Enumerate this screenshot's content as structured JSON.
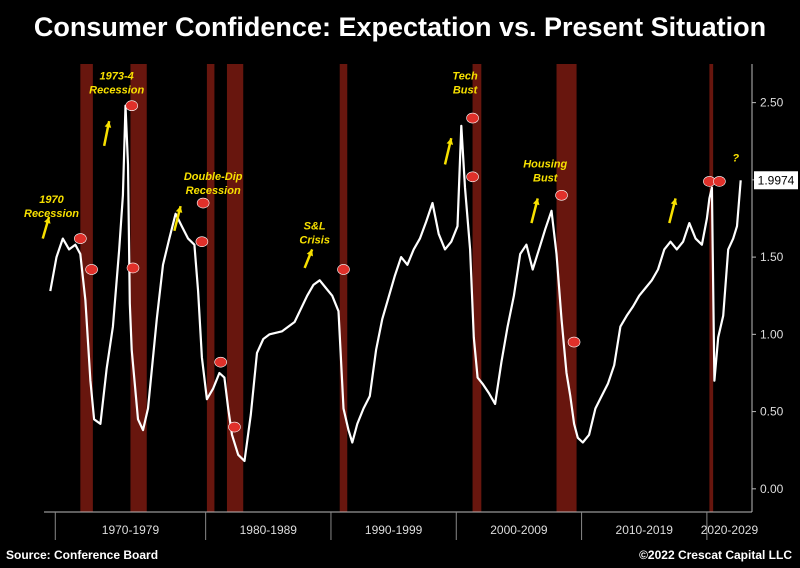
{
  "title": "Consumer Confidence: Expectation vs. Present Situation",
  "source": "Source: Conference Board",
  "copyright": "©2022 Crescat Capital LLC",
  "colors": {
    "line": "#ffffff",
    "recession": "#7a1a10",
    "annotation": "#f7e000",
    "marker": "#e0302a"
  },
  "chart_data": {
    "type": "line",
    "title": "Consumer Confidence: Expectation vs. Present Situation",
    "xlabel": "",
    "ylabel": "",
    "xlim": [
      1967.0,
      2023.5
    ],
    "ylim": [
      -0.15,
      2.75
    ],
    "yticks": [
      0.0,
      0.5,
      1.0,
      1.5,
      2.0,
      2.5
    ],
    "ytick_labels": [
      "0.00",
      "0.50",
      "1.00",
      "1.50",
      "",
      "2.50"
    ],
    "last_value_label": "1.9974",
    "last_value": 1.9974,
    "x_categories": [
      "1970-1979",
      "1980-1989",
      "1990-1999",
      "2000-2009",
      "2010-2019",
      "2020-2029"
    ],
    "x_category_bounds": [
      [
        1967.9,
        1979.9
      ],
      [
        1979.9,
        1989.9
      ],
      [
        1989.9,
        1999.9
      ],
      [
        1999.9,
        2009.9
      ],
      [
        2009.9,
        2019.9
      ],
      [
        2019.9,
        2023.5
      ]
    ],
    "recessions": [
      [
        1969.9,
        1970.9
      ],
      [
        1973.9,
        1975.2
      ],
      [
        1980.0,
        1980.6
      ],
      [
        1981.6,
        1982.9
      ],
      [
        1990.6,
        1991.2
      ],
      [
        2001.2,
        2001.9
      ],
      [
        2007.9,
        2009.5
      ],
      [
        2020.1,
        2020.4
      ]
    ],
    "series": [
      {
        "x": [
          1967.5,
          1968.0,
          1968.5,
          1969.0,
          1969.5,
          1969.9,
          1970.3,
          1970.7,
          1971.0,
          1971.5,
          1972.0,
          1972.5,
          1973.0,
          1973.3,
          1973.5,
          1973.7,
          1973.85,
          1974.0,
          1974.5,
          1974.9,
          1975.3,
          1976.0,
          1976.5,
          1977.0,
          1977.5,
          1978.0,
          1978.5,
          1979.0,
          1979.3,
          1979.6,
          1980.0,
          1980.5,
          1981.0,
          1981.4,
          1981.7,
          1982.0,
          1982.5,
          1983.0,
          1983.5,
          1984.0,
          1984.5,
          1985.0,
          1986.0,
          1987.0,
          1988.0,
          1988.5,
          1989.0,
          1989.5,
          1990.0,
          1990.5,
          1990.9,
          1991.3,
          1991.6,
          1992.0,
          1992.5,
          1993.0,
          1993.5,
          1994.0,
          1994.5,
          1995.0,
          1995.5,
          1996.0,
          1996.5,
          1997.0,
          1997.5,
          1998.0,
          1998.5,
          1999.0,
          1999.5,
          2000.0,
          2000.3,
          2000.6,
          2001.0,
          2001.3,
          2001.6,
          2002.0,
          2002.5,
          2003.0,
          2003.5,
          2004.0,
          2004.5,
          2005.0,
          2005.5,
          2006.0,
          2006.5,
          2007.0,
          2007.5,
          2007.9,
          2008.3,
          2008.7,
          2009.0,
          2009.3,
          2009.6,
          2010.0,
          2010.5,
          2011.0,
          2011.5,
          2012.0,
          2012.5,
          2013.0,
          2013.5,
          2014.0,
          2014.5,
          2015.0,
          2015.5,
          2016.0,
          2016.5,
          2017.0,
          2017.5,
          2018.0,
          2018.5,
          2019.0,
          2019.5,
          2019.9,
          2020.1,
          2020.3,
          2020.5,
          2020.8,
          2021.2,
          2021.6,
          2022.0,
          2022.3,
          2022.6
        ],
        "y": [
          1.28,
          1.5,
          1.62,
          1.55,
          1.58,
          1.52,
          1.22,
          0.7,
          0.45,
          0.42,
          0.78,
          1.05,
          1.55,
          1.9,
          2.48,
          2.1,
          1.2,
          0.9,
          0.45,
          0.38,
          0.52,
          1.1,
          1.45,
          1.62,
          1.78,
          1.7,
          1.62,
          1.58,
          1.28,
          0.85,
          0.58,
          0.65,
          0.75,
          0.72,
          0.52,
          0.35,
          0.22,
          0.18,
          0.48,
          0.88,
          0.97,
          1.0,
          1.02,
          1.08,
          1.25,
          1.32,
          1.35,
          1.3,
          1.25,
          1.15,
          0.52,
          0.38,
          0.3,
          0.42,
          0.52,
          0.6,
          0.9,
          1.1,
          1.24,
          1.38,
          1.5,
          1.45,
          1.55,
          1.62,
          1.73,
          1.85,
          1.65,
          1.55,
          1.6,
          1.7,
          2.35,
          1.95,
          1.55,
          0.98,
          0.72,
          0.68,
          0.62,
          0.55,
          0.82,
          1.05,
          1.25,
          1.52,
          1.58,
          1.42,
          1.55,
          1.68,
          1.8,
          1.52,
          1.1,
          0.75,
          0.6,
          0.42,
          0.33,
          0.3,
          0.35,
          0.52,
          0.6,
          0.68,
          0.8,
          1.05,
          1.12,
          1.18,
          1.25,
          1.3,
          1.35,
          1.42,
          1.55,
          1.6,
          1.55,
          1.6,
          1.72,
          1.62,
          1.58,
          1.75,
          1.88,
          1.95,
          0.7,
          0.98,
          1.12,
          1.55,
          1.62,
          1.7,
          1.9974
        ]
      }
    ],
    "markers": [
      {
        "x": 1969.9,
        "y": 1.62
      },
      {
        "x": 1970.8,
        "y": 1.42
      },
      {
        "x": 1974.0,
        "y": 2.48
      },
      {
        "x": 1974.1,
        "y": 1.43
      },
      {
        "x": 1979.7,
        "y": 1.85
      },
      {
        "x": 1979.6,
        "y": 1.6
      },
      {
        "x": 1981.1,
        "y": 0.82
      },
      {
        "x": 1982.2,
        "y": 0.4
      },
      {
        "x": 1990.9,
        "y": 1.42
      },
      {
        "x": 2001.2,
        "y": 2.4
      },
      {
        "x": 2001.2,
        "y": 2.02
      },
      {
        "x": 2008.3,
        "y": 1.9
      },
      {
        "x": 2009.3,
        "y": 0.95
      },
      {
        "x": 2020.1,
        "y": 1.99
      }
    ],
    "annotations": [
      {
        "lines": [
          "1970",
          "Recession"
        ],
        "x": 1967.6,
        "y": 1.85,
        "arrow": [
          1966.9,
          1.62,
          1967.4,
          1.76
        ]
      },
      {
        "lines": [
          "1973-4",
          "Recession"
        ],
        "x": 1972.8,
        "y": 2.65,
        "arrow": [
          1971.8,
          2.22,
          1972.2,
          2.38
        ]
      },
      {
        "lines": [
          "Double-Dip",
          "Recession"
        ],
        "x": 1980.5,
        "y": 2.0,
        "arrow": [
          1977.4,
          1.67,
          1977.9,
          1.83
        ]
      },
      {
        "lines": [
          "S&L",
          "Crisis"
        ],
        "x": 1988.6,
        "y": 1.68,
        "arrow": [
          1987.8,
          1.43,
          1988.4,
          1.55
        ]
      },
      {
        "lines": [
          "Tech",
          "Bust"
        ],
        "x": 2000.6,
        "y": 2.65,
        "arrow": [
          1999.0,
          2.1,
          1999.5,
          2.27
        ]
      },
      {
        "lines": [
          "Housing",
          "Bust"
        ],
        "x": 2007.0,
        "y": 2.08,
        "arrow": [
          2005.9,
          1.72,
          2006.4,
          1.88
        ]
      },
      {
        "lines": [
          "?"
        ],
        "x": 2022.2,
        "y": 2.12,
        "big": true,
        "arrow": [
          2016.9,
          1.72,
          2017.4,
          1.88
        ]
      }
    ]
  }
}
